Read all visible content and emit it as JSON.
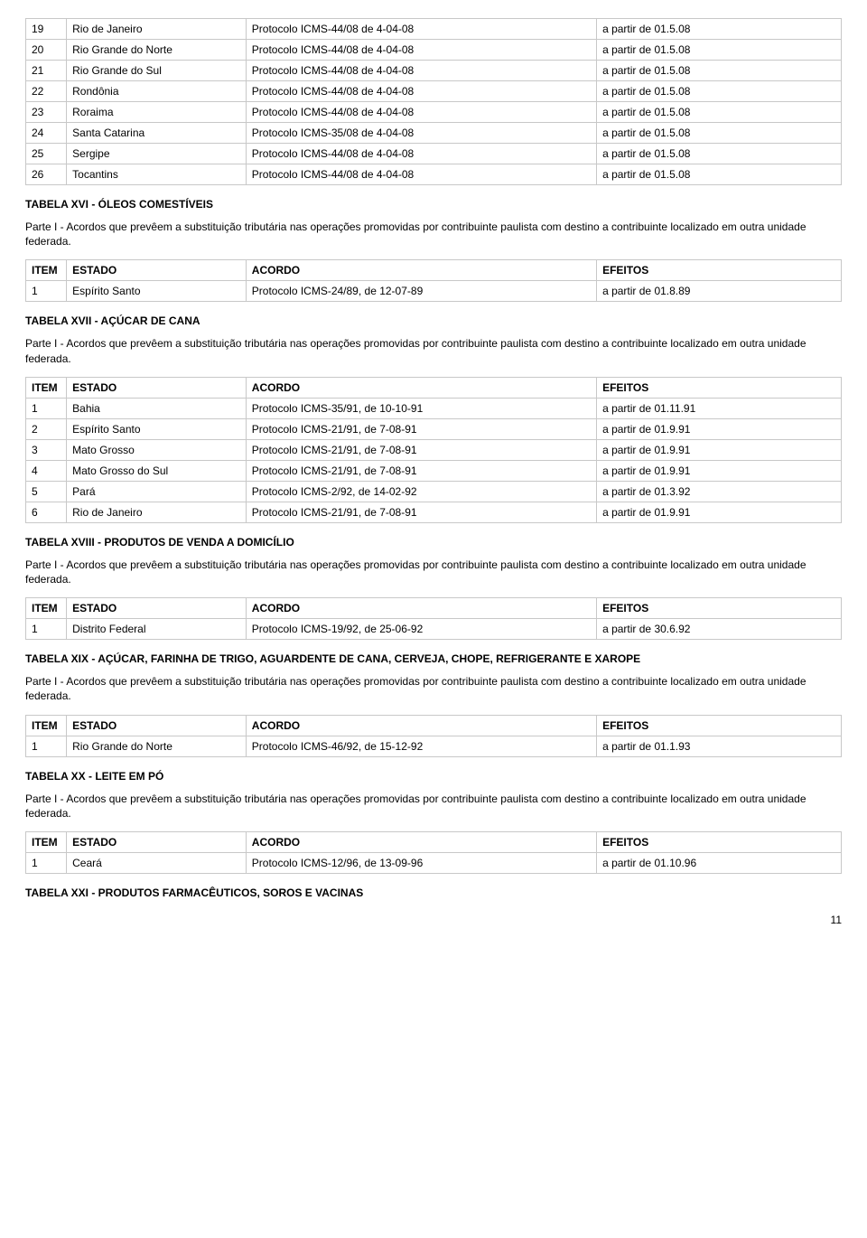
{
  "topTable": {
    "rows": [
      [
        "19",
        "Rio de Janeiro",
        "Protocolo ICMS-44/08 de 4-04-08",
        "a partir de 01.5.08"
      ],
      [
        "20",
        "Rio Grande do Norte",
        "Protocolo ICMS-44/08 de 4-04-08",
        "a partir de 01.5.08"
      ],
      [
        "21",
        "Rio Grande do Sul",
        "Protocolo ICMS-44/08 de 4-04-08",
        "a partir de 01.5.08"
      ],
      [
        "22",
        "Rondônia",
        "Protocolo ICMS-44/08 de 4-04-08",
        "a partir de 01.5.08"
      ],
      [
        "23",
        "Roraima",
        "Protocolo ICMS-44/08 de 4-04-08",
        "a partir de 01.5.08"
      ],
      [
        "24",
        "Santa Catarina",
        "Protocolo ICMS-35/08 de 4-04-08",
        "a partir de 01.5.08"
      ],
      [
        "25",
        "Sergipe",
        "Protocolo ICMS-44/08 de 4-04-08",
        "a partir de 01.5.08"
      ],
      [
        "26",
        "Tocantins",
        "Protocolo ICMS-44/08 de 4-04-08",
        "a partir de 01.5.08"
      ]
    ]
  },
  "paragraph": "Parte I - Acordos que prevêem a substituição tributária nas operações promovidas por contribuinte paulista com destino a contribuinte localizado em outra unidade federada.",
  "headers": {
    "item": "ITEM",
    "estado": "ESTADO",
    "acordo": "ACORDO",
    "efeitos": "EFEITOS"
  },
  "sections": [
    {
      "title": "TABELA XVI - ÓLEOS COMESTÍVEIS",
      "rows": [
        [
          "1",
          "Espírito Santo",
          "Protocolo ICMS-24/89, de 12-07-89",
          "a partir de 01.8.89"
        ]
      ]
    },
    {
      "title": "TABELA XVII - AÇÚCAR DE CANA",
      "rows": [
        [
          "1",
          "Bahia",
          "Protocolo ICMS-35/91, de 10-10-91",
          "a partir de 01.11.91"
        ],
        [
          "2",
          "Espírito Santo",
          "Protocolo ICMS-21/91, de 7-08-91",
          "a partir de 01.9.91"
        ],
        [
          "3",
          "Mato Grosso",
          "Protocolo ICMS-21/91, de 7-08-91",
          "a partir de 01.9.91"
        ],
        [
          "4",
          "Mato Grosso do Sul",
          "Protocolo ICMS-21/91, de 7-08-91",
          "a partir de 01.9.91"
        ],
        [
          "5",
          "Pará",
          "Protocolo ICMS-2/92, de 14-02-92",
          "a partir de 01.3.92"
        ],
        [
          "6",
          "Rio de Janeiro",
          "Protocolo ICMS-21/91, de 7-08-91",
          "a partir de 01.9.91"
        ]
      ]
    },
    {
      "title": "TABELA XVIII - PRODUTOS DE VENDA A DOMICÍLIO",
      "rows": [
        [
          "1",
          "Distrito Federal",
          "Protocolo ICMS-19/92, de 25-06-92",
          "a partir de 30.6.92"
        ]
      ]
    },
    {
      "title": "TABELA XIX - AÇÚCAR, FARINHA DE TRIGO, AGUARDENTE DE CANA, CERVEJA, CHOPE, REFRIGERANTE E XAROPE",
      "rows": [
        [
          "1",
          "Rio Grande do Norte",
          "Protocolo ICMS-46/92, de 15-12-92",
          "a partir de 01.1.93"
        ]
      ]
    },
    {
      "title": "TABELA XX - LEITE EM PÓ",
      "rows": [
        [
          "1",
          "Ceará",
          "Protocolo ICMS-12/96, de 13-09-96",
          "a partir de 01.10.96"
        ]
      ]
    }
  ],
  "lastHeading": "TABELA XXI - PRODUTOS FARMACÊUTICOS, SOROS E VACINAS",
  "pageNumber": "11"
}
